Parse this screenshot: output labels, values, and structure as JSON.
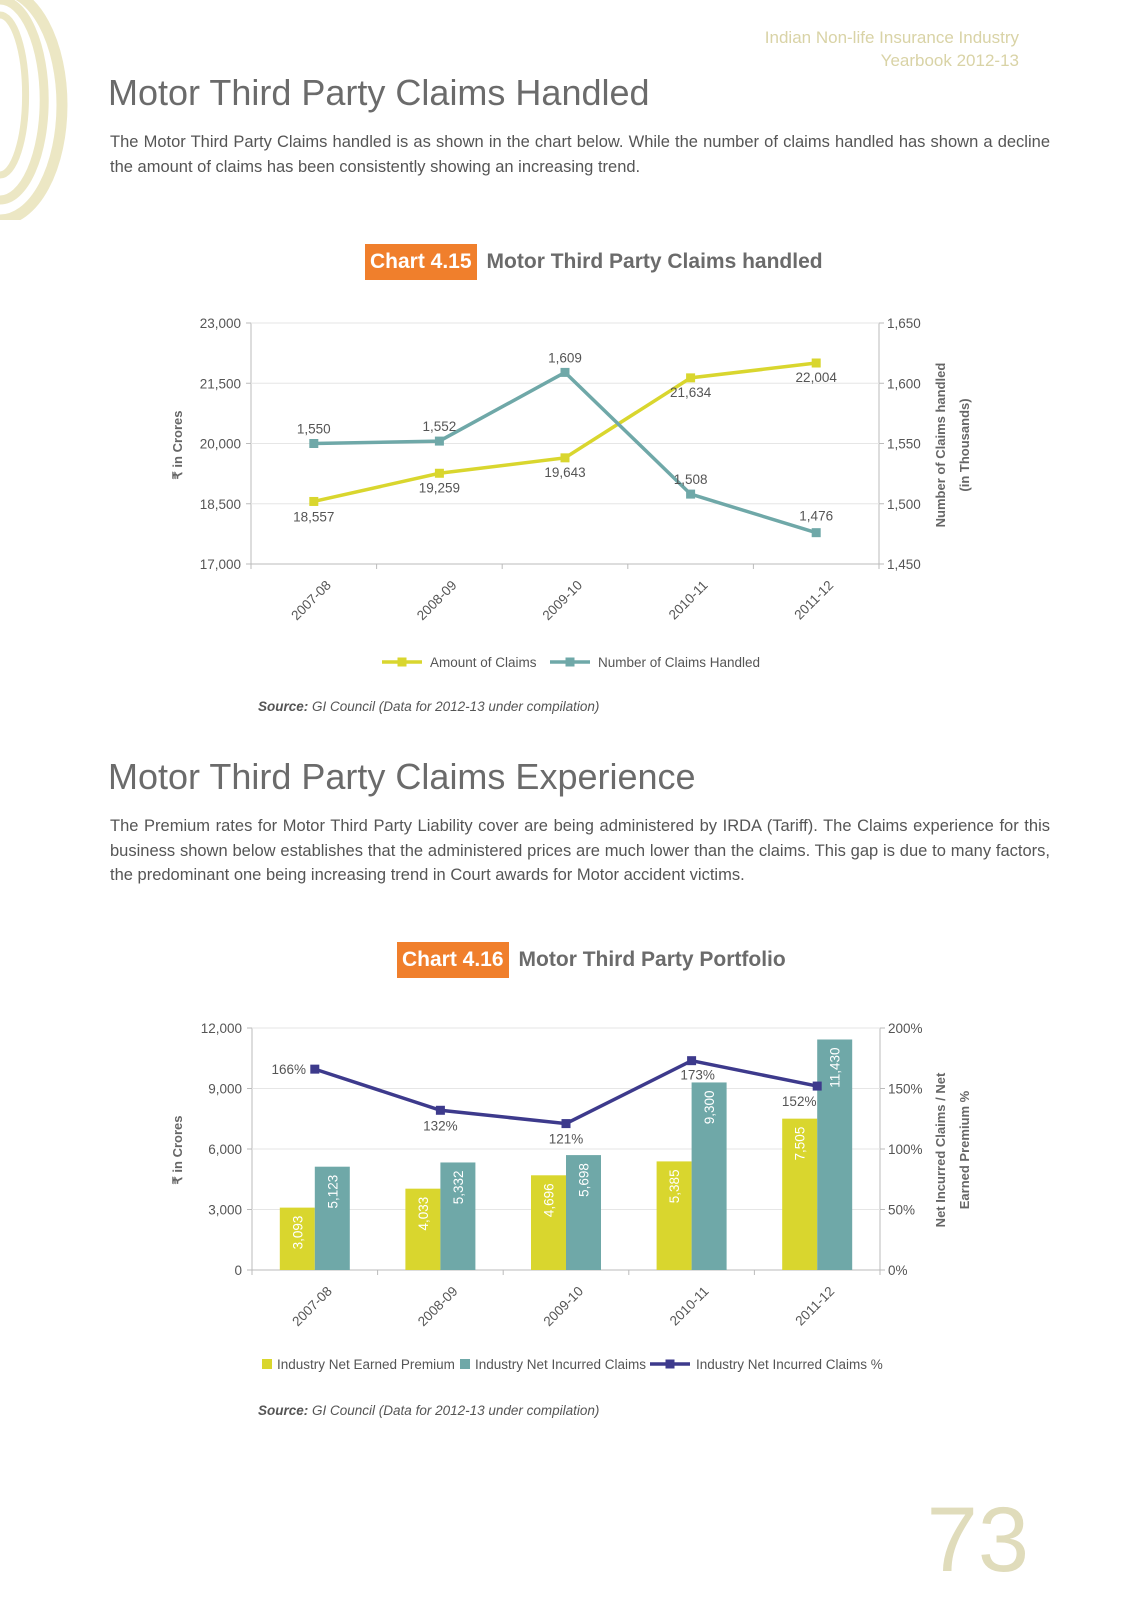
{
  "header": {
    "line1": "Indian Non-life Insurance Industry",
    "line2": "Yearbook 2012-13"
  },
  "section1": {
    "title": "Motor Third Party Claims Handled",
    "text": "The Motor Third Party Claims handled is as shown in the chart below.  While the number of claims handled has shown a decline the amount of claims has been consistently showing an increasing trend."
  },
  "section2": {
    "title": "Motor Third Party Claims Experience",
    "text": "The Premium rates for Motor Third Party Liability cover are being administered by IRDA (Tariff). The Claims experience for this business shown below establishes that the administered prices are much lower than the claims. This gap is due to many factors, the predominant one being increasing trend in Court awards for Motor accident victims."
  },
  "chart1": {
    "tag": "Chart 4.15",
    "name": "Motor Third Party Claims handled",
    "source_label": "Source:",
    "source_text": "GI Council (Data for 2012-13 under compilation)"
  },
  "chart2": {
    "tag": "Chart 4.16",
    "name": "Motor Third Party Portfolio",
    "source_label": "Source:",
    "source_text": "GI Council (Data for 2012-13 under compilation)"
  },
  "page_number": "73",
  "chart_data": [
    {
      "type": "line",
      "title": "Motor Third Party Claims handled",
      "categories": [
        "2007-08",
        "2008-09",
        "2009-10",
        "2010-11",
        "2011-12"
      ],
      "ylabel": "₹ in Crores",
      "ylabel2": [
        "Number of Claims handled",
        "(in Thousands)"
      ],
      "ylim": [
        17000,
        23000
      ],
      "yticks": [
        "17,000",
        "18,500",
        "20,000",
        "21,500",
        "23,000"
      ],
      "ylim2": [
        1450,
        1650
      ],
      "yticks2": [
        "1,450",
        "1,500",
        "1,550",
        "1,600",
        "1,650"
      ],
      "legend": "bottom",
      "grid": false,
      "series": [
        {
          "name": "Amount of Claims",
          "axis": "left",
          "color": "#d9d62e",
          "values": [
            18557,
            19259,
            19643,
            21634,
            22004
          ],
          "labels": [
            "18,557",
            "19,259",
            "19,643",
            "21,634",
            "22,004"
          ]
        },
        {
          "name": "Number of Claims Handled",
          "axis": "right",
          "color": "#6fa8a8",
          "values": [
            1550,
            1552,
            1609,
            1508,
            1476
          ],
          "labels": [
            "1,550",
            "1,552",
            "1,609",
            "1,508",
            "1,476"
          ]
        }
      ]
    },
    {
      "type": "bar",
      "title": "Motor Third Party Portfolio",
      "categories": [
        "2007-08",
        "2008-09",
        "2009-10",
        "2010-11",
        "2011-12"
      ],
      "ylabel": "₹ in Crores",
      "ylabel2": [
        "Net Incurred Claims / Net",
        "Earned Premium %"
      ],
      "ylim": [
        0,
        12000
      ],
      "yticks": [
        "0",
        "3,000",
        "6,000",
        "9,000",
        "12,000"
      ],
      "ylim2": [
        0,
        200
      ],
      "yticks2": [
        "0%",
        "50%",
        "100%",
        "150%",
        "200%"
      ],
      "legend": "bottom",
      "grid": true,
      "series": [
        {
          "name": "Industry Net Earned Premium",
          "kind": "bar",
          "axis": "left",
          "color": "#d9d62e",
          "values": [
            3093,
            4033,
            4696,
            5385,
            7505
          ],
          "labels": [
            "3,093",
            "4,033",
            "4,696",
            "5,385",
            "7,505"
          ]
        },
        {
          "name": "Industry Net Incurred Claims",
          "kind": "bar",
          "axis": "left",
          "color": "#6fa8a8",
          "values": [
            5123,
            5332,
            5698,
            9300,
            11430
          ],
          "labels": [
            "5,123",
            "5,332",
            "5,698",
            "9,300",
            "11,430"
          ]
        },
        {
          "name": "Industry Net Incurred Claims %",
          "kind": "line",
          "axis": "right",
          "color": "#3d3a8c",
          "values": [
            166,
            132,
            121,
            173,
            152
          ],
          "labels": [
            "166%",
            "132%",
            "121%",
            "173%",
            "152%"
          ]
        }
      ]
    }
  ]
}
